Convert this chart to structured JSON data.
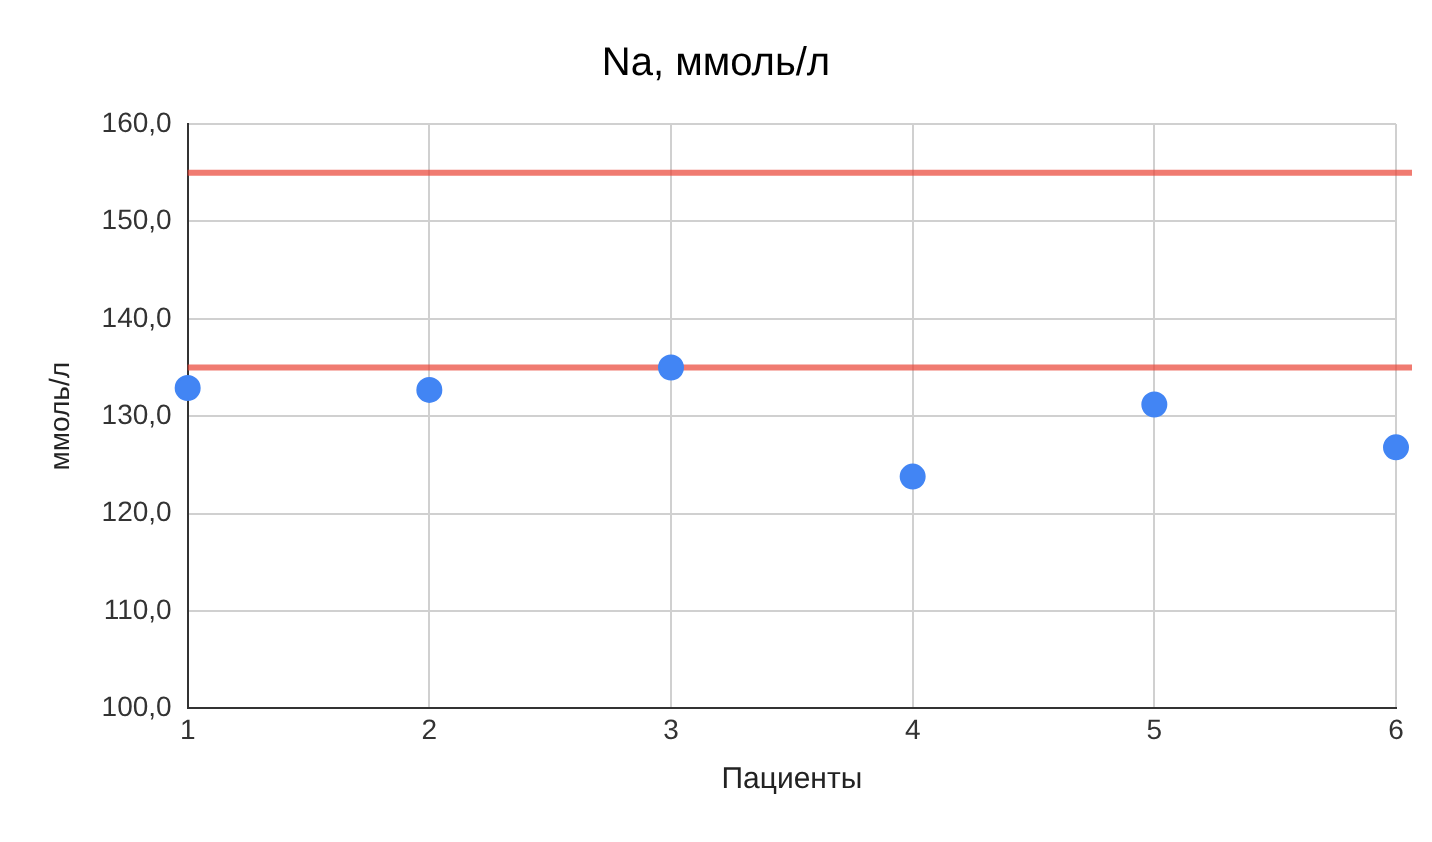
{
  "chart_data": {
    "type": "scatter",
    "title": "Na, ммоль/л",
    "xlabel": "Пациенты",
    "ylabel": "ммоль/л",
    "x": [
      1,
      2,
      3,
      4,
      5,
      6
    ],
    "series": [
      {
        "color": "#4285f4",
        "values": [
          132.9,
          132.7,
          135.0,
          123.8,
          131.2,
          126.8
        ]
      }
    ],
    "xlim": [
      1,
      6
    ],
    "xticks": [
      1,
      2,
      3,
      4,
      5,
      6
    ],
    "ylim": [
      100,
      160
    ],
    "yticks": [
      {
        "value": 100,
        "label": "100,0"
      },
      {
        "value": 110,
        "label": "110,0"
      },
      {
        "value": 120,
        "label": "120,0"
      },
      {
        "value": 130,
        "label": "130,0"
      },
      {
        "value": 140,
        "label": "140,0"
      },
      {
        "value": 150,
        "label": "150,0"
      },
      {
        "value": 160,
        "label": "160,0"
      }
    ],
    "ref_lines": [
      {
        "axis": "y",
        "value": 155,
        "color": "#ea4335"
      },
      {
        "axis": "y",
        "value": 135,
        "color": "#ea4335"
      }
    ],
    "grid": true,
    "legend": false,
    "marker": "circle"
  }
}
